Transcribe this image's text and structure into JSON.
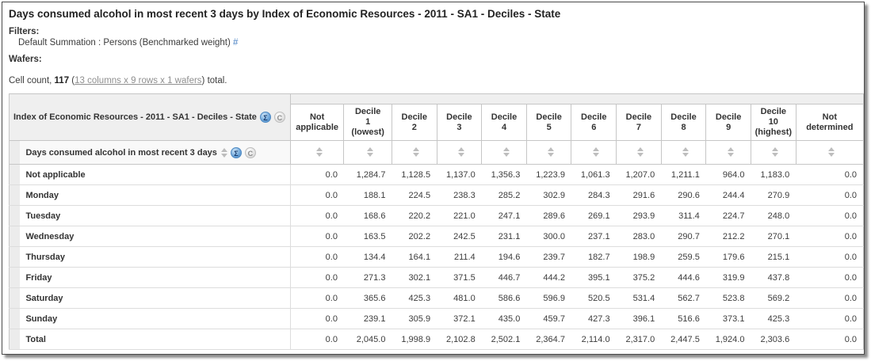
{
  "header": {
    "title": "Days consumed alcohol in most recent 3 days by Index of Economic Resources - 2011 - SA1 - Deciles - State",
    "filters_label": "Filters:",
    "filter_value": "Default Summation : Persons (Benchmarked weight)",
    "filter_link": "#",
    "wafers_label": "Wafers:",
    "cell_count": {
      "prefix": "Cell count, ",
      "count": "117",
      "open": " (",
      "link": "13 columns x 9 rows x 1 wafers",
      "close": ") total."
    }
  },
  "table": {
    "column_dimension_label": "Index of Economic Resources - 2011 - SA1 - Deciles - State",
    "row_dimension_label": "Days consumed alcohol in most recent 3 days",
    "icons": {
      "summation": "Σ",
      "collapse": "C"
    },
    "columns": [
      "Not\napplicable",
      "Decile\n1\n(lowest)",
      "Decile\n2",
      "Decile\n3",
      "Decile\n4",
      "Decile\n5",
      "Decile\n6",
      "Decile\n7",
      "Decile\n8",
      "Decile\n9",
      "Decile\n10\n(highest)",
      "Not\ndetermined"
    ],
    "rows": [
      {
        "label": "Not applicable",
        "values": [
          "0.0",
          "1,284.7",
          "1,128.5",
          "1,137.0",
          "1,356.3",
          "1,223.9",
          "1,061.3",
          "1,207.0",
          "1,211.1",
          "964.0",
          "1,183.0",
          "0.0"
        ]
      },
      {
        "label": "Monday",
        "values": [
          "0.0",
          "188.1",
          "224.5",
          "238.3",
          "285.2",
          "302.9",
          "284.3",
          "291.6",
          "290.6",
          "244.4",
          "270.9",
          "0.0"
        ]
      },
      {
        "label": "Tuesday",
        "values": [
          "0.0",
          "168.6",
          "220.2",
          "221.0",
          "247.1",
          "289.6",
          "269.1",
          "293.9",
          "311.4",
          "224.7",
          "248.0",
          "0.0"
        ]
      },
      {
        "label": "Wednesday",
        "values": [
          "0.0",
          "163.5",
          "202.2",
          "242.5",
          "231.1",
          "300.0",
          "237.1",
          "283.0",
          "290.7",
          "212.2",
          "270.1",
          "0.0"
        ]
      },
      {
        "label": "Thursday",
        "values": [
          "0.0",
          "134.4",
          "164.1",
          "211.4",
          "194.6",
          "239.7",
          "182.7",
          "198.9",
          "259.5",
          "179.6",
          "215.1",
          "0.0"
        ]
      },
      {
        "label": "Friday",
        "values": [
          "0.0",
          "271.3",
          "302.1",
          "371.5",
          "446.7",
          "444.2",
          "395.1",
          "375.2",
          "444.6",
          "319.9",
          "437.8",
          "0.0"
        ]
      },
      {
        "label": "Saturday",
        "values": [
          "0.0",
          "365.6",
          "425.3",
          "481.0",
          "586.6",
          "596.9",
          "520.5",
          "531.4",
          "562.7",
          "523.8",
          "569.2",
          "0.0"
        ]
      },
      {
        "label": "Sunday",
        "values": [
          "0.0",
          "239.1",
          "305.9",
          "372.1",
          "435.0",
          "459.7",
          "427.3",
          "396.1",
          "516.6",
          "373.1",
          "425.3",
          "0.0"
        ]
      },
      {
        "label": "Total",
        "values": [
          "0.0",
          "2,045.0",
          "1,998.9",
          "2,102.8",
          "2,502.1",
          "2,364.7",
          "2,114.0",
          "2,317.0",
          "2,447.5",
          "1,924.0",
          "2,303.6",
          "0.0"
        ]
      }
    ]
  },
  "colors": {
    "header_grey": "#efefef",
    "border_grey": "#c6c6c6",
    "row_border": "#dddddd",
    "link_blue": "#4a82c4",
    "link_grey": "#8f8f8f",
    "sigma_blue": "#4c88c2"
  }
}
